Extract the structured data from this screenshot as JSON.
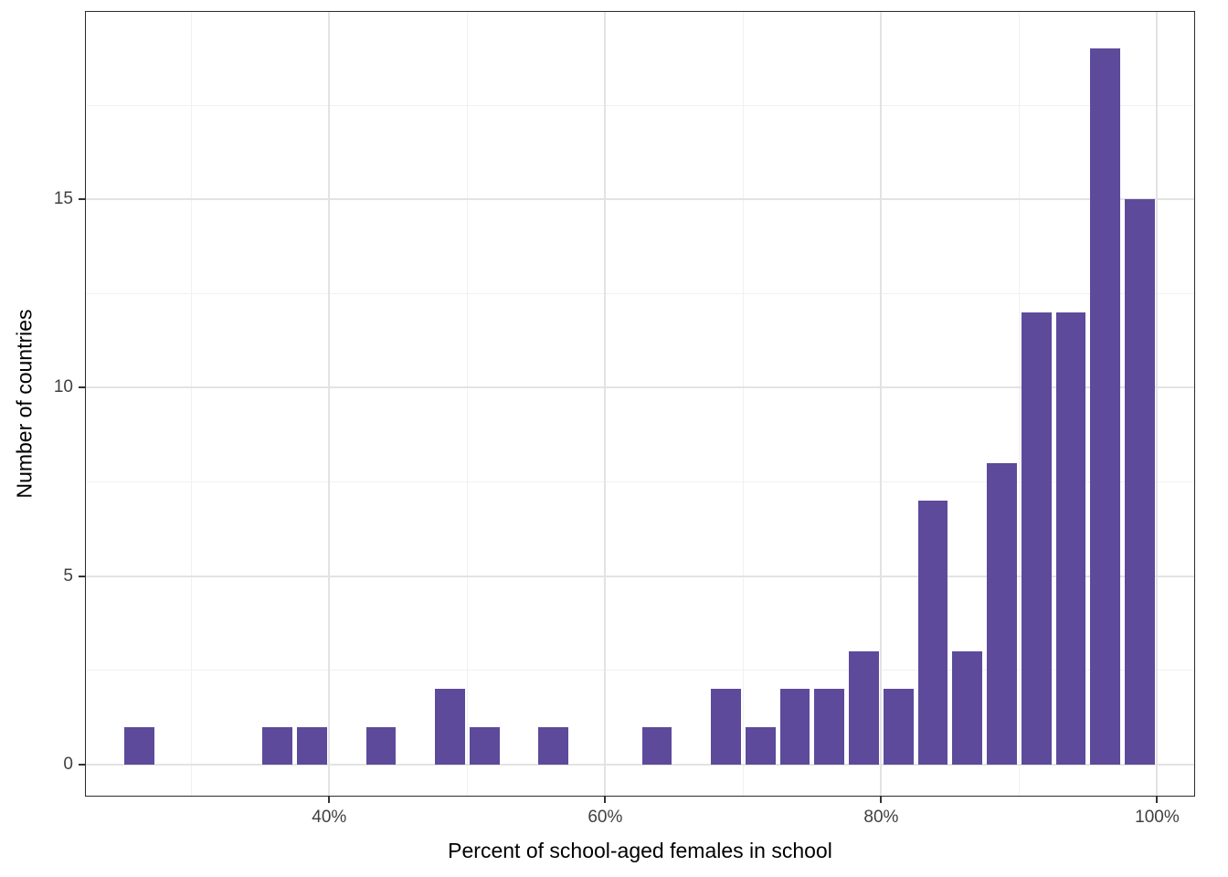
{
  "page": {
    "background": "#ffffff"
  },
  "chart_data": {
    "type": "bar",
    "subtype": "histogram",
    "title": "",
    "xlabel": "Percent of school-aged females in school",
    "ylabel": "Number of countries",
    "bar_color": "#5D4A9B",
    "bar_gap_color": "#ffffff",
    "bin_width": 2.5,
    "bins": [
      {
        "start": 25.0,
        "end": 27.5,
        "count": 1
      },
      {
        "start": 35.0,
        "end": 37.5,
        "count": 1
      },
      {
        "start": 37.5,
        "end": 40.0,
        "count": 1
      },
      {
        "start": 42.5,
        "end": 45.0,
        "count": 1
      },
      {
        "start": 47.5,
        "end": 50.0,
        "count": 2
      },
      {
        "start": 50.0,
        "end": 52.5,
        "count": 1
      },
      {
        "start": 55.0,
        "end": 57.5,
        "count": 1
      },
      {
        "start": 62.5,
        "end": 65.0,
        "count": 1
      },
      {
        "start": 67.5,
        "end": 70.0,
        "count": 2
      },
      {
        "start": 70.0,
        "end": 72.5,
        "count": 1
      },
      {
        "start": 72.5,
        "end": 75.0,
        "count": 2
      },
      {
        "start": 75.0,
        "end": 77.5,
        "count": 2
      },
      {
        "start": 77.5,
        "end": 80.0,
        "count": 3
      },
      {
        "start": 80.0,
        "end": 82.5,
        "count": 2
      },
      {
        "start": 82.5,
        "end": 85.0,
        "count": 7
      },
      {
        "start": 85.0,
        "end": 87.5,
        "count": 3
      },
      {
        "start": 87.5,
        "end": 90.0,
        "count": 8
      },
      {
        "start": 90.0,
        "end": 92.5,
        "count": 12
      },
      {
        "start": 92.5,
        "end": 95.0,
        "count": 12
      },
      {
        "start": 95.0,
        "end": 97.5,
        "count": 19
      },
      {
        "start": 97.5,
        "end": 100.0,
        "count": 15
      }
    ],
    "x_ticks": [
      {
        "value": 40,
        "label": "40%"
      },
      {
        "value": 60,
        "label": "60%"
      },
      {
        "value": 80,
        "label": "80%"
      },
      {
        "value": 100,
        "label": "100%"
      }
    ],
    "y_ticks": [
      {
        "value": 0,
        "label": "0"
      },
      {
        "value": 5,
        "label": "5"
      },
      {
        "value": 10,
        "label": "10"
      },
      {
        "value": 15,
        "label": "15"
      }
    ],
    "x_minor_gridlines": [
      30,
      50,
      70,
      90
    ],
    "y_minor_gridlines": [
      2.5,
      7.5,
      12.5,
      17.5
    ],
    "xlim": [
      22.3,
      102.75
    ],
    "ylim": [
      -0.85,
      20.0
    ],
    "grid": "on",
    "legend": "none",
    "panel_border_color": "#2b2b2b",
    "grid_major_color": "#e3e3e3",
    "grid_minor_color": "#f1f1f1",
    "tick_label_color": "#404040",
    "axis_title_color": "#000000"
  }
}
